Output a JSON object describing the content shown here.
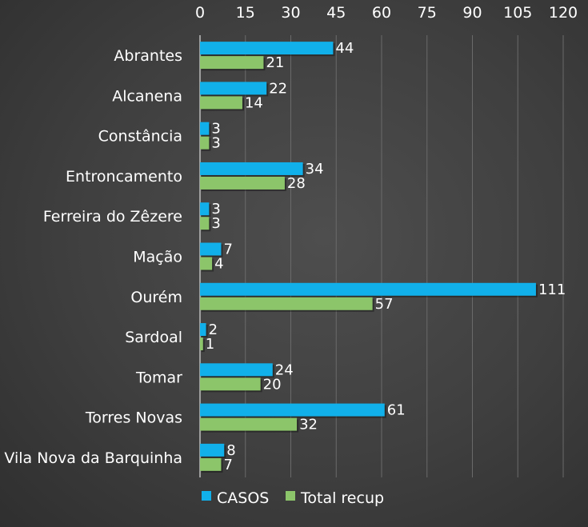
{
  "chart_data": {
    "type": "bar",
    "orientation": "horizontal",
    "categories": [
      "Abrantes",
      "Alcanena",
      "Constância",
      "Entroncamento",
      "Ferreira do Zêzere",
      "Mação",
      "Ourém",
      "Sardoal",
      "Tomar",
      "Torres Novas",
      "Vila Nova da Barquinha"
    ],
    "series": [
      {
        "name": "CASOS",
        "color": "#11b0ea",
        "values": [
          44,
          22,
          3,
          34,
          3,
          7,
          111,
          2,
          24,
          61,
          8
        ]
      },
      {
        "name": "Total recup",
        "color": "#8cc56a",
        "values": [
          21,
          14,
          3,
          28,
          3,
          4,
          57,
          1,
          20,
          32,
          7
        ]
      }
    ],
    "xlim": [
      0,
      120
    ],
    "xticks": [
      0,
      15,
      30,
      45,
      60,
      75,
      90,
      105,
      120
    ],
    "xaxis_position": "top",
    "grid": true,
    "legend_position": "bottom",
    "data_labels": true
  },
  "legend": {
    "series_1": "CASOS",
    "series_2": "Total recup"
  }
}
